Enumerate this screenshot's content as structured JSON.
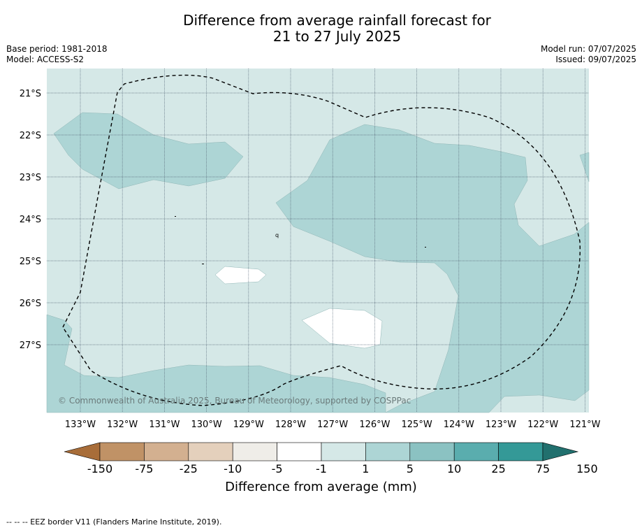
{
  "title": {
    "line1": "Difference from average rainfall forecast for",
    "line2": "21 to 27 July 2025"
  },
  "meta_left": {
    "base_period": "Base period: 1981-2018",
    "model": "Model: ACCESS-S2"
  },
  "meta_right": {
    "model_run": "Model run: 07/07/2025",
    "issued": "Issued: 09/07/2025"
  },
  "map": {
    "lat_labels": [
      "21°S",
      "22°S",
      "23°S",
      "24°S",
      "25°S",
      "26°S",
      "27°S"
    ],
    "lon_labels": [
      "133°W",
      "132°W",
      "131°W",
      "130°W",
      "129°W",
      "128°W",
      "127°W",
      "126°W",
      "125°W",
      "124°W",
      "123°W",
      "122°W",
      "121°W"
    ],
    "copyright": "© Commonwealth of Australia 2025, Bureau of Meteorology, supported by COSPPac",
    "eez_style": "dashed",
    "colors": {
      "class_1_5": "#d5e8e7",
      "class_5_10": "#add5d5",
      "class_m1_1": "#ffffff",
      "gridline": "#556677",
      "eez": "#000000"
    }
  },
  "colorbar": {
    "tick_labels": [
      "-150",
      "-75",
      "-25",
      "-10",
      "-5",
      "-1",
      "1",
      "5",
      "10",
      "25",
      "75",
      "150"
    ],
    "colors": [
      "#a86d39",
      "#c09266",
      "#d3b090",
      "#e4d0bc",
      "#efede8",
      "#ffffff",
      "#d5e8e7",
      "#add5d5",
      "#8bc2c2",
      "#5aadae",
      "#349997",
      "#21706e"
    ],
    "title": "Difference from average (mm)"
  },
  "footer": {
    "legend": "--  --  -- EEZ border V11 (Flanders Marine Institute, 2019)."
  }
}
